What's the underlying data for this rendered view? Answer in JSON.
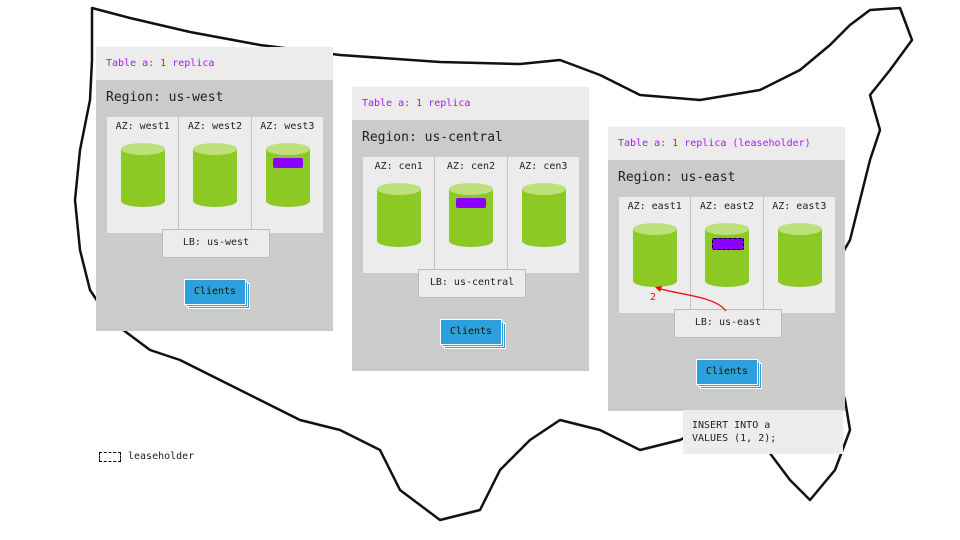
{
  "regions": [
    {
      "table_label": "Table a: 1 replica",
      "title": "Region: us-west",
      "azs": [
        "AZ: west1",
        "AZ: west2",
        "AZ: west3"
      ],
      "replica_az": 2,
      "leaseholder": false,
      "lb": "LB: us-west",
      "clients": "Clients"
    },
    {
      "table_label": "Table a: 1 replica",
      "title": "Region: us-central",
      "azs": [
        "AZ: cen1",
        "AZ: cen2",
        "AZ: cen3"
      ],
      "replica_az": 1,
      "leaseholder": false,
      "lb": "LB: us-central",
      "clients": "Clients"
    },
    {
      "table_label": "Table a: 1 replica (leaseholder)",
      "title": "Region: us-east",
      "azs": [
        "AZ: east1",
        "AZ: east2",
        "AZ: east3"
      ],
      "replica_az": 1,
      "leaseholder": true,
      "lb": "LB: us-east",
      "clients": "Clients"
    }
  ],
  "arrow_label": "2",
  "sql": "INSERT INTO a\nVALUES (1, 2);",
  "legend": {
    "label": "leaseholder"
  },
  "colors": {
    "replica": "#8b00ff",
    "node": "#8cc924",
    "node_top": "#bde07d",
    "clients": "#2e9fdd",
    "arrow": "#ff0000",
    "table_label": "#a020f0"
  }
}
